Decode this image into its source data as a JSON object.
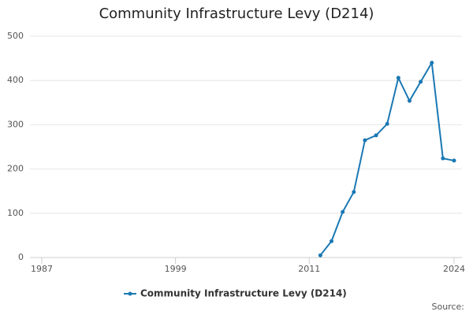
{
  "chart_data": {
    "type": "line",
    "title": "Community Infrastructure Levy (D214)",
    "x": [
      2012,
      2013,
      2014,
      2015,
      2016,
      2017,
      2018,
      2019,
      2020,
      2021,
      2022,
      2023,
      2024
    ],
    "series": [
      {
        "name": "Community Infrastructure Levy (D214)",
        "color": "#1a78b4",
        "values": [
          5,
          37,
          103,
          148,
          265,
          276,
          302,
          406,
          354,
          397,
          440,
          224,
          219
        ]
      }
    ],
    "xlim": [
      1987,
      2024
    ],
    "xticks": [
      1987,
      1999,
      2011,
      2024
    ],
    "ylim": [
      0,
      500
    ],
    "yticks": [
      0,
      100,
      200,
      300,
      400,
      500
    ],
    "grid": true,
    "legend": "bottom",
    "source": "Source:"
  }
}
